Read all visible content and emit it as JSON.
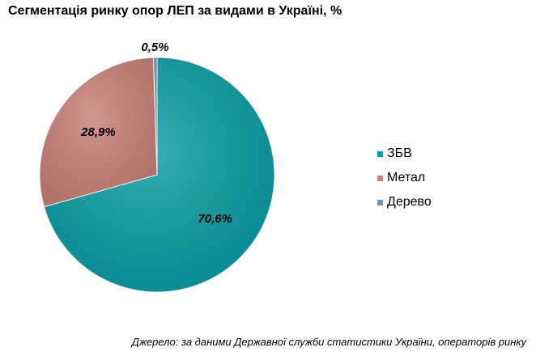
{
  "page": {
    "title": "Сегментація ринку опор ЛЕП за видами в Україні, %",
    "source": "Джерело: за даними Державної служби статистики України, операторів ринку"
  },
  "colors": {
    "zbv": "#0a9ea5",
    "metal": "#c98178",
    "wood": "#6e93b3"
  },
  "chart_data": {
    "type": "pie",
    "title": "Сегментація ринку опор ЛЕП за видами в Україні, %",
    "categories": [
      "ЗБВ",
      "Метал",
      "Дерево"
    ],
    "values": [
      70.6,
      28.9,
      0.5
    ],
    "labels": [
      "70,6%",
      "28,9%",
      "0,5%"
    ],
    "legend_position": "right"
  }
}
